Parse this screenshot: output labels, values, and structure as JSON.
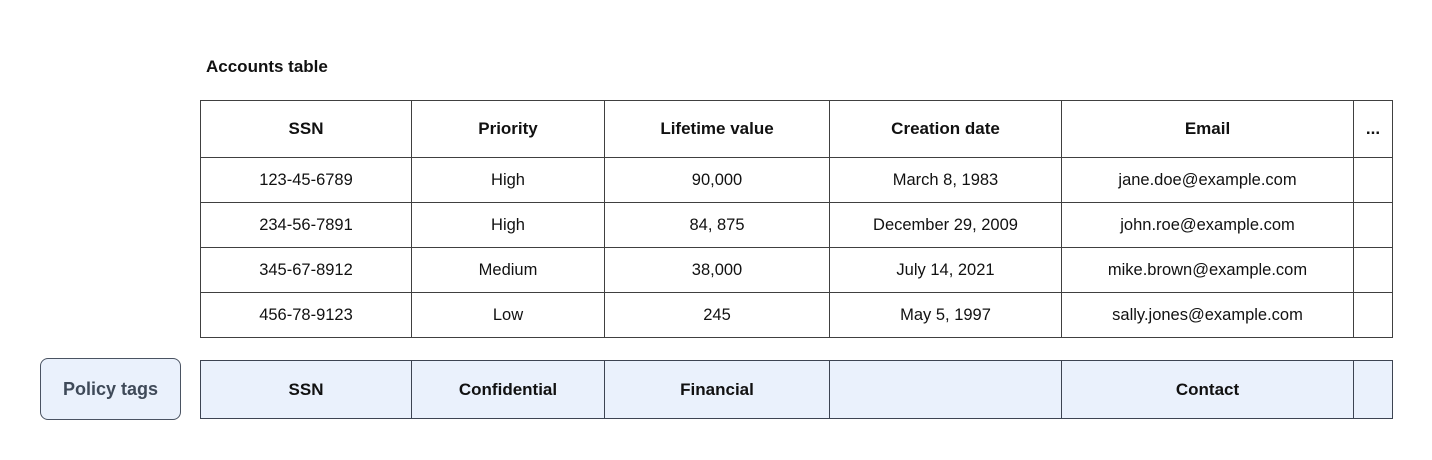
{
  "title": "Accounts table",
  "accounts_table": {
    "columns": [
      "SSN",
      "Priority",
      "Lifetime value",
      "Creation date",
      "Email",
      "..."
    ],
    "rows": [
      [
        "123-45-6789",
        "High",
        "90,000",
        "March 8, 1983",
        "jane.doe@example.com",
        ""
      ],
      [
        "234-56-7891",
        "High",
        "84, 875",
        "December 29, 2009",
        "john.roe@example.com",
        ""
      ],
      [
        "345-67-8912",
        "Medium",
        "38,000",
        "July 14, 2021",
        "mike.brown@example.com",
        ""
      ],
      [
        "456-78-9123",
        "Low",
        "245",
        "May 5, 1997",
        "sally.jones@example.com",
        ""
      ]
    ]
  },
  "policy_tags": {
    "label": "Policy tags",
    "tags": [
      "SSN",
      "Confidential",
      "Financial",
      "",
      "Contact",
      ""
    ]
  },
  "colors": {
    "table_border": "#404040",
    "policy_border": "#3d4452",
    "policy_bg": "#eaf1fc",
    "button_text": "#3f4a59",
    "text": "#111111"
  }
}
